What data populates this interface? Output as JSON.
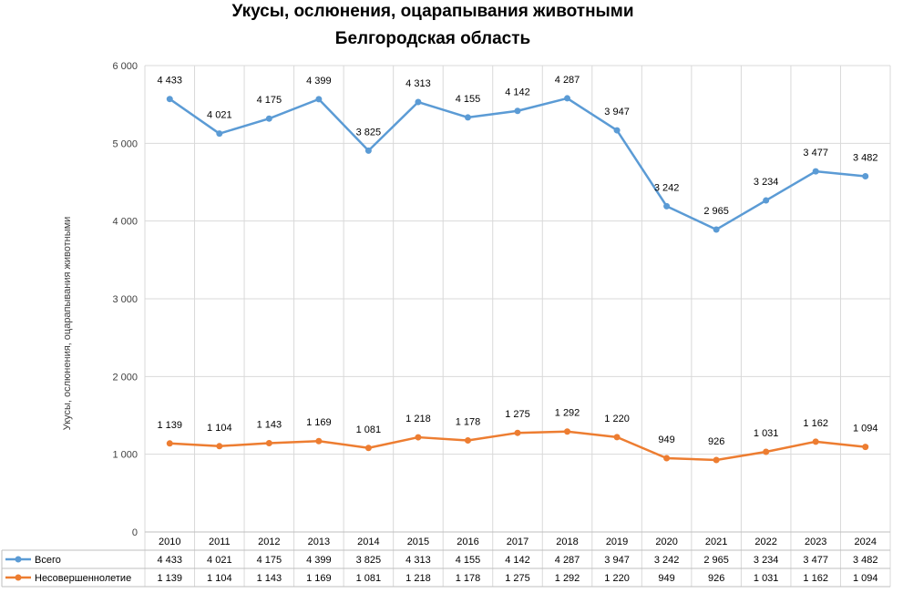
{
  "chart_data": {
    "type": "line",
    "title": "Укусы, ослюнения, оцарапывания животными",
    "subtitle": "Белгородская область",
    "ylabel": "Укусы, ослюнения, оцарапывания животными",
    "xlabel": "",
    "ylim": [
      0,
      6000
    ],
    "yticks": [
      "0",
      "1 000",
      "2 000",
      "3 000",
      "4 000",
      "5 000",
      "6 000"
    ],
    "grid": true,
    "legend": "data-table",
    "categories": [
      "2010",
      "2011",
      "2012",
      "2013",
      "2014",
      "2015",
      "2016",
      "2017",
      "2018",
      "2019",
      "2020",
      "2021",
      "2022",
      "2023",
      "2024"
    ],
    "series": [
      {
        "name": "Всего",
        "color": "#5B9BD5",
        "values": [
          5570,
          5125,
          5318,
          5568,
          4906,
          5531,
          5333,
          5417,
          5579,
          5167,
          4191,
          3891,
          4265,
          4639,
          4576
        ],
        "labels": [
          "4 433",
          "4 021",
          "4 175",
          "4 399",
          "3 825",
          "4 313",
          "4 155",
          "4 142",
          "4 287",
          "3 947",
          "3 242",
          "2 965",
          "3 234",
          "3 477",
          "3 482"
        ]
      },
      {
        "name": "Несовершеннолетие",
        "color": "#ED7D31",
        "values": [
          1139,
          1104,
          1143,
          1169,
          1081,
          1218,
          1178,
          1275,
          1292,
          1220,
          949,
          926,
          1031,
          1162,
          1094
        ],
        "labels": [
          "1 139",
          "1 104",
          "1 143",
          "1 169",
          "1 081",
          "1 218",
          "1 178",
          "1 275",
          "1 292",
          "1 220",
          "949",
          "926",
          "1 031",
          "1 162",
          "1 094"
        ]
      }
    ]
  }
}
